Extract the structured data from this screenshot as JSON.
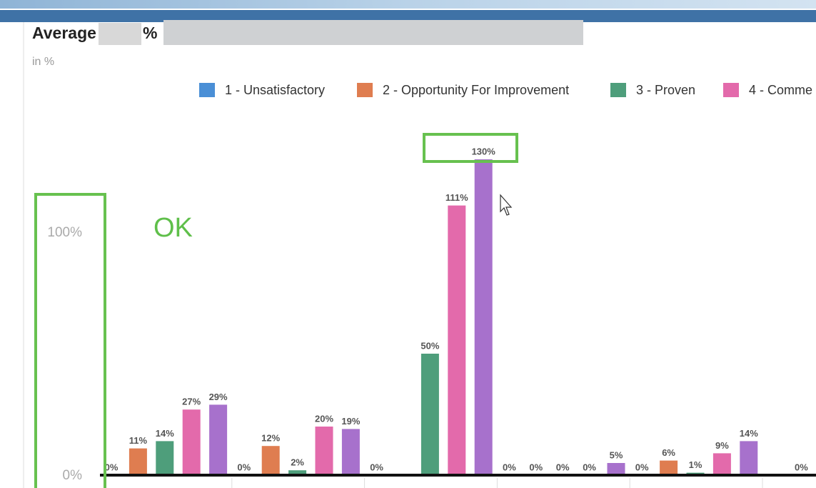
{
  "chart_data": {
    "type": "bar",
    "title": "Average",
    "title_suffix": "%",
    "subtitle": "in %",
    "annotation": "OK",
    "categories": [
      null,
      null,
      null,
      null,
      null,
      null
    ],
    "series": [
      {
        "name": "1 - Unsatisfactory",
        "color": "#4a8fd6",
        "values": [
          0,
          0,
          0,
          0,
          0,
          null
        ]
      },
      {
        "name": "2 - Opportunity For Improvement",
        "color": "#df7d50",
        "values": [
          11,
          12,
          null,
          0,
          6,
          0
        ]
      },
      {
        "name": "3 - Proven",
        "color": "#4e9e7b",
        "values": [
          14,
          2,
          50,
          0,
          1,
          null
        ]
      },
      {
        "name": "4 - Comme",
        "color": "#e36aab",
        "values": [
          27,
          20,
          111,
          0,
          9,
          null
        ]
      },
      {
        "name": null,
        "color": "#a771cc",
        "values": [
          29,
          19,
          130,
          5,
          14,
          null
        ]
      }
    ],
    "ylim": [
      0,
      150
    ],
    "yticks": [
      {
        "value": 0,
        "label": "0%"
      },
      {
        "value": 100,
        "label": "100%"
      }
    ]
  }
}
